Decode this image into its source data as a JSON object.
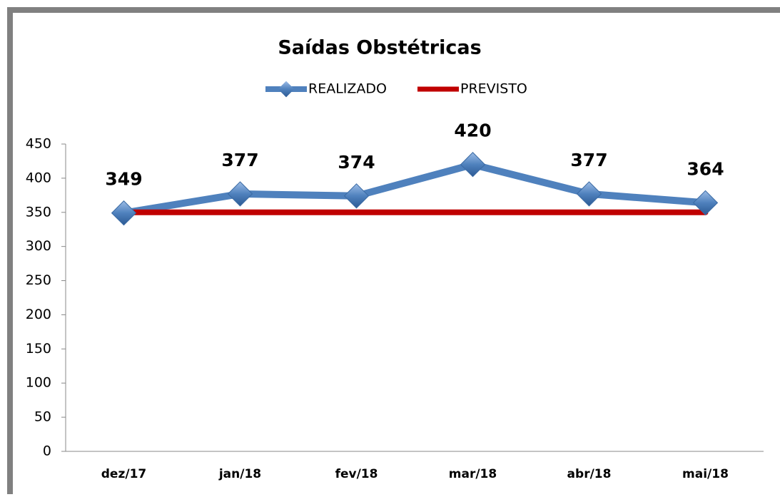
{
  "chart_data": {
    "type": "line",
    "title": "Saídas Obstétricas",
    "categories": [
      "dez/17",
      "jan/18",
      "fev/18",
      "mar/18",
      "abr/18",
      "mai/18"
    ],
    "series": [
      {
        "name": "REALIZADO",
        "color": "#4f81bd",
        "values": [
          349,
          377,
          374,
          420,
          377,
          364
        ],
        "markers": true,
        "data_labels": true
      },
      {
        "name": "PREVISTO",
        "color": "#c00000",
        "values": [
          350,
          350,
          350,
          350,
          350,
          350
        ],
        "markers": false,
        "data_labels": false
      }
    ],
    "ylim": [
      0,
      450
    ],
    "yticks": [
      0,
      50,
      100,
      150,
      200,
      250,
      300,
      350,
      400,
      450
    ],
    "grid": false,
    "legend": "top"
  }
}
